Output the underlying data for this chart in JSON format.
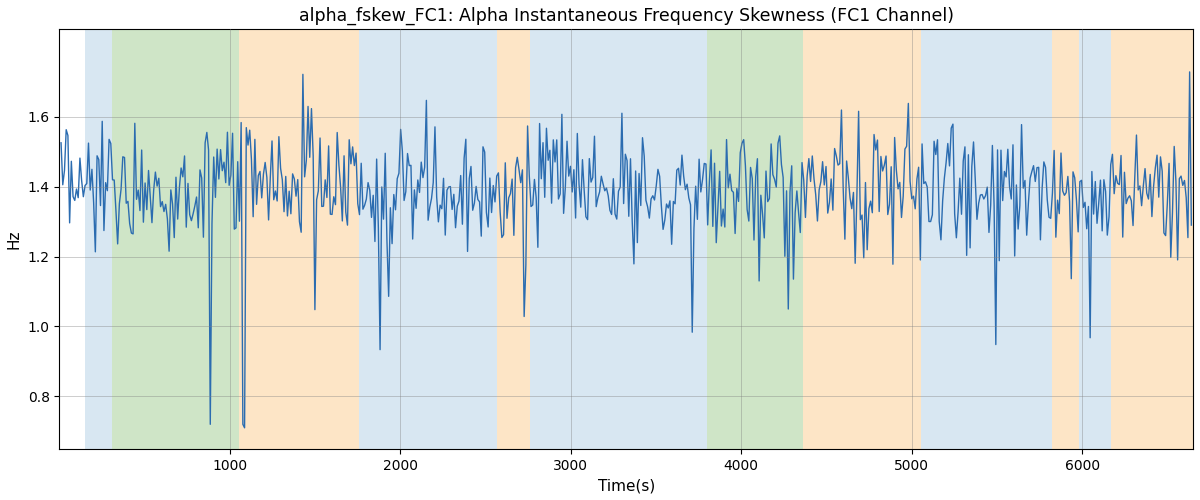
{
  "title": "alpha_fskew_FC1: Alpha Instantaneous Frequency Skewness (FC1 Channel)",
  "xlabel": "Time(s)",
  "ylabel": "Hz",
  "xlim": [
    0,
    6650
  ],
  "ylim": [
    0.65,
    1.85
  ],
  "yticks": [
    0.8,
    1.0,
    1.2,
    1.4,
    1.6
  ],
  "xticks": [
    1000,
    2000,
    3000,
    4000,
    5000,
    6000
  ],
  "line_color": "#2b6cb0",
  "line_width": 1.0,
  "bg_bands": [
    {
      "xmin": 148,
      "xmax": 310,
      "color": "#b8d4e8",
      "alpha": 0.55
    },
    {
      "xmin": 310,
      "xmax": 1055,
      "color": "#a8d09a",
      "alpha": 0.55
    },
    {
      "xmin": 1055,
      "xmax": 1760,
      "color": "#fcd5a0",
      "alpha": 0.6
    },
    {
      "xmin": 1760,
      "xmax": 2565,
      "color": "#b8d4e8",
      "alpha": 0.55
    },
    {
      "xmin": 2565,
      "xmax": 2760,
      "color": "#fcd5a0",
      "alpha": 0.6
    },
    {
      "xmin": 2760,
      "xmax": 3660,
      "color": "#b8d4e8",
      "alpha": 0.55
    },
    {
      "xmin": 3660,
      "xmax": 3800,
      "color": "#b8d4e8",
      "alpha": 0.55
    },
    {
      "xmin": 3800,
      "xmax": 4360,
      "color": "#a8d09a",
      "alpha": 0.55
    },
    {
      "xmin": 4360,
      "xmax": 5055,
      "color": "#fcd5a0",
      "alpha": 0.6
    },
    {
      "xmin": 5055,
      "xmax": 5820,
      "color": "#b8d4e8",
      "alpha": 0.55
    },
    {
      "xmin": 5820,
      "xmax": 5980,
      "color": "#fcd5a0",
      "alpha": 0.6
    },
    {
      "xmin": 5980,
      "xmax": 6170,
      "color": "#b8d4e8",
      "alpha": 0.55
    },
    {
      "xmin": 6170,
      "xmax": 6650,
      "color": "#fcd5a0",
      "alpha": 0.6
    }
  ],
  "figsize": [
    12.0,
    5.0
  ],
  "dpi": 100
}
